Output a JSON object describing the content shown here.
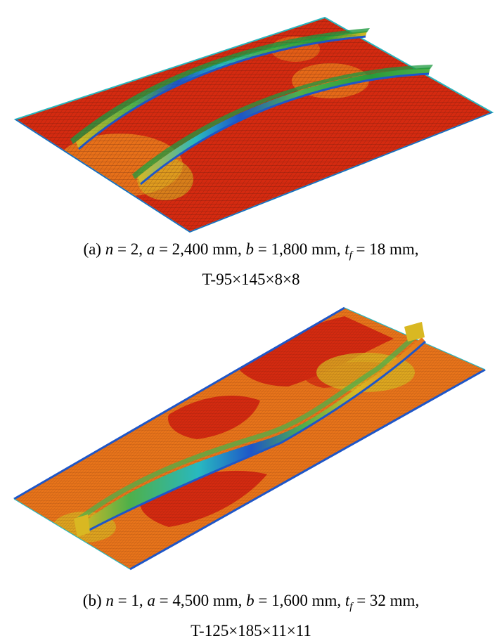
{
  "figure_a": {
    "caption_parts": {
      "label": "(a) ",
      "n_sym": "n",
      "n_val": " = 2, ",
      "a_sym": "a",
      "a_val": " = 2,400 mm, ",
      "b_sym": "b",
      "b_val": " = 1,800 mm, ",
      "t_sym": "t",
      "t_sub": "f",
      "t_val": " = 18 mm,",
      "line2": "T-95×145×8×8"
    }
  },
  "figure_b": {
    "caption_parts": {
      "label": "(b) ",
      "n_sym": "n",
      "n_val": " = 1, ",
      "a_sym": "a",
      "a_val": " = 4,500 mm, ",
      "b_sym": "b",
      "b_val": " = 1,600 mm, ",
      "t_sym": "t",
      "t_sub": "f",
      "t_val": " = 32 mm,",
      "line2": "T-125×185×11×11"
    }
  },
  "colors": {
    "high": "#d42a10",
    "orange": "#e8741a",
    "yellow": "#d9b822",
    "green": "#4fb04a",
    "cyan": "#28b8c0",
    "blue": "#1e56c8",
    "mesh": "#3a1410"
  }
}
